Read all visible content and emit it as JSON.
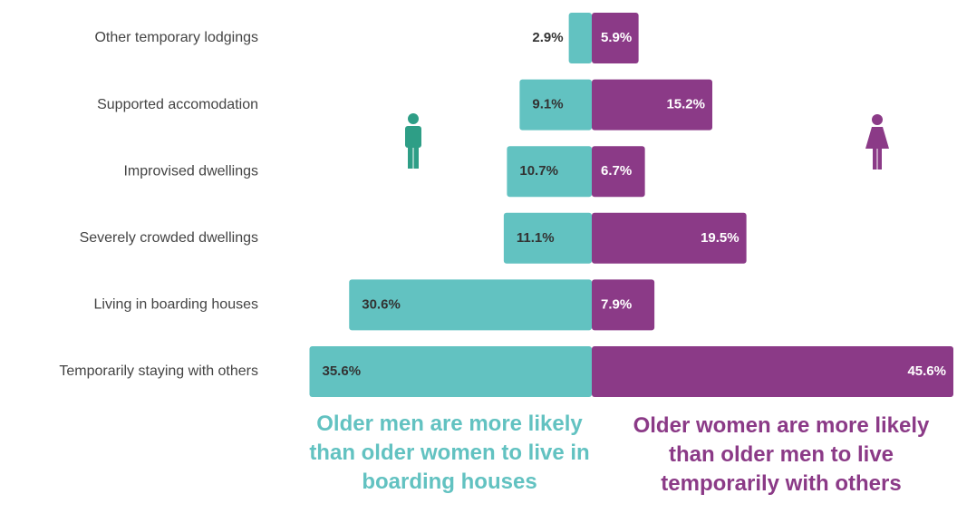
{
  "chart_data": {
    "type": "diverging_bar",
    "categories": [
      "Other temporary lodgings",
      "Supported accomodation",
      "Improvised dwellings",
      "Severely crowded dwellings",
      "Living in boarding houses",
      "Temporarily staying with others"
    ],
    "series": [
      {
        "color": "#62c2c1",
        "values": [
          2.9,
          9.1,
          10.7,
          11.1,
          30.6,
          35.6
        ],
        "value_labels": [
          "2.9%",
          "9.1%",
          "10.7%",
          "11.1%",
          "30.6%",
          "35.6%"
        ]
      },
      {
        "color": "#8b3a87",
        "values": [
          5.9,
          15.2,
          6.7,
          19.5,
          7.9,
          45.6
        ],
        "value_labels": [
          "5.9%",
          "15.2%",
          "6.7%",
          "19.5%",
          "7.9%",
          "45.6%"
        ]
      }
    ],
    "annotations": [
      "Older men are more likely than older women to live in boarding houses",
      "Older women are more likely than older men to live temporarily with others"
    ]
  }
}
